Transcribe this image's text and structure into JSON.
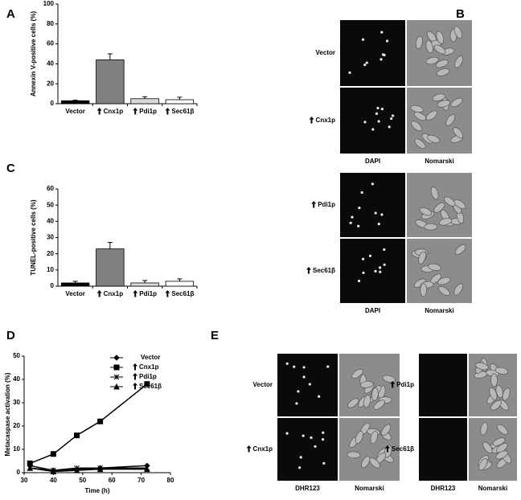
{
  "chart_data": [
    {
      "type": "bar",
      "panel_label": "A",
      "ylabel": "Annexin V-positive cells (%)",
      "categories": [
        "Vector",
        "Cnx1p",
        "Pdi1p",
        "Sec61β"
      ],
      "values": [
        3,
        44,
        5,
        4
      ],
      "errors": [
        0.5,
        6,
        2,
        2.5
      ],
      "colors": [
        "#000000",
        "#808080",
        "#d9d9d9",
        "#ffffff"
      ],
      "ylim": [
        0,
        100
      ],
      "yticks": [
        0,
        20,
        40,
        60,
        80,
        100
      ]
    },
    {
      "type": "bar",
      "panel_label": "C",
      "ylabel": "TUNEL-positive cells (%)",
      "categories": [
        "Vector",
        "Cnx1p",
        "Pdi1p",
        "Sec61β"
      ],
      "values": [
        2,
        23,
        2,
        3
      ],
      "errors": [
        1,
        4,
        1.5,
        1.5
      ],
      "colors": [
        "#000000",
        "#808080",
        "#d9d9d9",
        "#ffffff"
      ],
      "ylim": [
        0,
        60
      ],
      "yticks": [
        0,
        10,
        20,
        30,
        40,
        50,
        60
      ]
    },
    {
      "type": "line",
      "panel_label": "D",
      "ylabel": "Metacaspase activation (%)",
      "xlabel": "Time (h)",
      "x": [
        32,
        40,
        48,
        56,
        72
      ],
      "series": [
        {
          "name": "Vector",
          "color": "#000000",
          "marker": "diamond",
          "values": [
            3,
            1,
            1.5,
            2,
            3
          ]
        },
        {
          "name": "Cnx1p",
          "color": "#000000",
          "marker": "square",
          "values": [
            4,
            8,
            16,
            22,
            38
          ]
        },
        {
          "name": "Pdi1p",
          "color": "#000000",
          "marker": "star",
          "values": [
            2,
            1,
            2,
            2,
            2
          ]
        },
        {
          "name": "Sec61β",
          "color": "#000000",
          "marker": "triangle",
          "values": [
            2,
            0.5,
            1,
            1.5,
            1.5
          ]
        }
      ],
      "xlim": [
        30,
        80
      ],
      "xticks": [
        30,
        40,
        50,
        60,
        70,
        80
      ],
      "ylim": [
        0,
        50
      ],
      "yticks": [
        0,
        10,
        20,
        30,
        40,
        50
      ],
      "legend": "top right"
    }
  ],
  "image_panels": [
    {
      "label": "B",
      "blocks": [
        {
          "rows": [
            "Vector",
            "Cnx1p"
          ],
          "columns": [
            "DAPI",
            "Nomarski"
          ]
        },
        {
          "rows": [
            "Pdi1p",
            "Sec61β"
          ],
          "columns": [
            "DAPI",
            "Nomarski"
          ]
        }
      ]
    },
    {
      "label": "E",
      "blocks": [
        {
          "rows": [
            "Vector",
            "Cnx1p"
          ],
          "columns": [
            "DHR123",
            "Nomarski"
          ]
        },
        {
          "rows": [
            "Pdi1p",
            "Sec61β"
          ],
          "columns": [
            "DHR123",
            "Nomarski"
          ]
        }
      ]
    }
  ]
}
